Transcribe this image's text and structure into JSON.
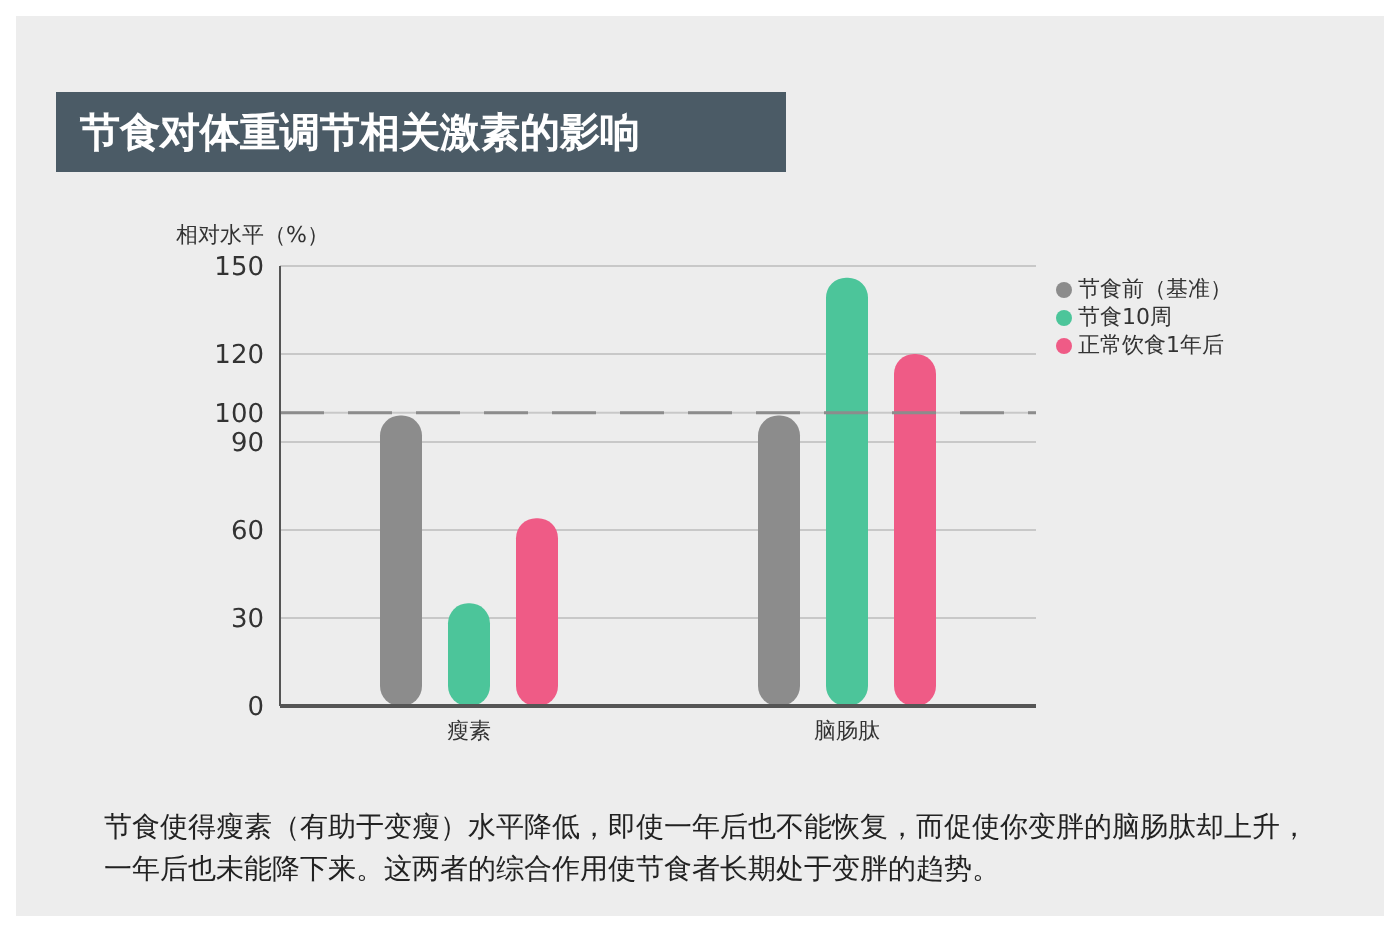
{
  "chart_data": {
    "type": "bar",
    "title": "节食对体重调节相关激素的影响",
    "ylabel": "相对水平（%）",
    "categories": [
      "瘦素",
      "脑肠肽"
    ],
    "series": [
      {
        "name": "节食前（基准）",
        "color": "#8c8c8c",
        "values": [
          99,
          99
        ]
      },
      {
        "name": "节食10周",
        "color": "#4cc59a",
        "values": [
          35,
          146
        ]
      },
      {
        "name": "正常饮食1年后",
        "color": "#ef5b86",
        "values": [
          64,
          120
        ]
      }
    ],
    "ylim": [
      0,
      150
    ],
    "yticks": [
      0,
      30,
      60,
      90,
      100,
      120,
      150
    ],
    "grid": "y",
    "legend": "top right",
    "ref_lines": [
      {
        "axis": "y",
        "value": 100,
        "color": "#8c8c8c",
        "line_style": "dashed"
      }
    ],
    "annotations": [
      "节食使得瘦素（有助于变瘦）水平降低，即使一年后也不能恢复，而促使你变胖的脑肠肽却上升，一年后也未能降下来。这两者的综合作用使节食者长期处于变胖的趋势。"
    ]
  }
}
